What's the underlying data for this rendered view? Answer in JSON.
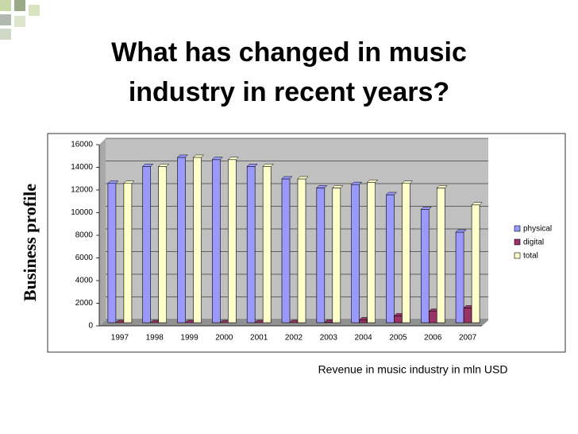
{
  "chart_data": {
    "type": "bar",
    "title": "What has changed in music industry in recent years?",
    "side_label": "Business profile",
    "footer": "Revenue in music industry in mln USD",
    "categories": [
      "1997",
      "1998",
      "1999",
      "2000",
      "2001",
      "2002",
      "2003",
      "2004",
      "2005",
      "2006",
      "2007"
    ],
    "series": [
      {
        "name": "physical",
        "color": "#9999ff",
        "values": [
          12300,
          13800,
          14600,
          14400,
          13800,
          12700,
          11900,
          12200,
          11300,
          10000,
          8000
        ]
      },
      {
        "name": "digital",
        "color": "#993366",
        "values": [
          0,
          0,
          0,
          0,
          0,
          0,
          20,
          250,
          600,
          1000,
          1300
        ]
      },
      {
        "name": "total",
        "color": "#ffffcc",
        "values": [
          12300,
          13800,
          14600,
          14400,
          13800,
          12700,
          11900,
          12400,
          12300,
          11900,
          10400
        ]
      }
    ],
    "ylim": [
      0,
      16000
    ],
    "yticks": [
      0,
      2000,
      4000,
      6000,
      8000,
      10000,
      12000,
      14000,
      16000
    ],
    "grid": true,
    "legend": "right"
  }
}
